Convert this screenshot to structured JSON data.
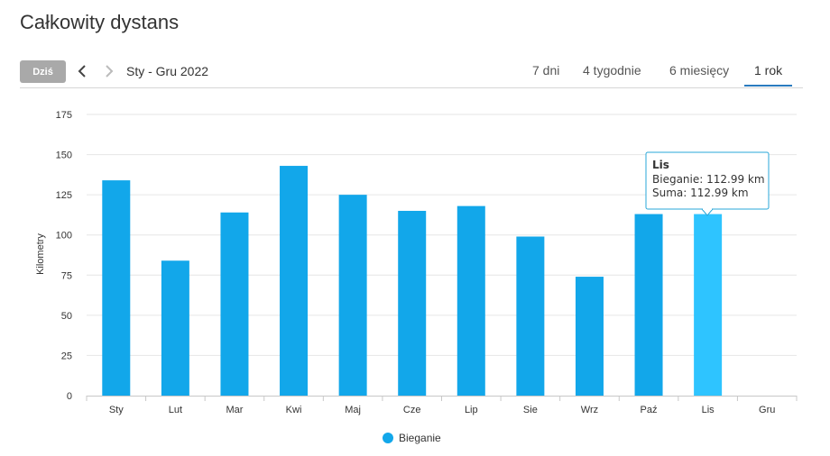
{
  "page": {
    "title": "Całkowity dystans"
  },
  "toolbar": {
    "today_label": "Dziś",
    "range_label": "Sty - Gru 2022",
    "prev_icon": "chevron-left-icon",
    "next_icon": "chevron-right-icon",
    "tabs": [
      {
        "label": "7 dni",
        "active": false
      },
      {
        "label": "4 tygodnie",
        "active": false
      },
      {
        "label": "6 miesięcy",
        "active": false
      },
      {
        "label": "1 rok",
        "active": true
      }
    ],
    "active_color": "#2a7bbf"
  },
  "chart_data": {
    "type": "bar",
    "ylabel": "Kilometry",
    "xlabel": "",
    "ylim": [
      0,
      175
    ],
    "yticks": [
      0,
      25,
      50,
      75,
      100,
      125,
      150,
      175
    ],
    "grid": true,
    "legend_position": "bottom-center",
    "categories": [
      "Sty",
      "Lut",
      "Mar",
      "Kwi",
      "Maj",
      "Cze",
      "Lip",
      "Sie",
      "Wrz",
      "Paź",
      "Lis",
      "Gru"
    ],
    "series": [
      {
        "name": "Bieganie",
        "color": "#12a7ea",
        "highlight_color": "#2ec4ff",
        "values": [
          134,
          84,
          114,
          143,
          125,
          115,
          118,
          99,
          74,
          113,
          112.99,
          null
        ]
      }
    ],
    "highlighted_index": 10,
    "tooltip": {
      "title": "Lis",
      "line1": "Bieganie: 112.99 km",
      "line2": "Suma: 112.99 km",
      "border_color": "#2aa7d8"
    }
  }
}
